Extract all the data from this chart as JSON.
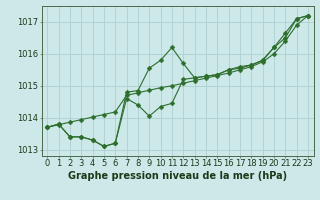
{
  "title": "Graphe pression niveau de la mer (hPa)",
  "bg_color": "#cce8e8",
  "grid_color": "#add0d0",
  "line_color": "#2d6e2d",
  "marker_color": "#2d6e2d",
  "ylim": [
    1012.8,
    1017.5
  ],
  "xlim": [
    -0.5,
    23.5
  ],
  "yticks": [
    1013,
    1014,
    1015,
    1016,
    1017
  ],
  "xticks": [
    0,
    1,
    2,
    3,
    4,
    5,
    6,
    7,
    8,
    9,
    10,
    11,
    12,
    13,
    14,
    15,
    16,
    17,
    18,
    19,
    20,
    21,
    22,
    23
  ],
  "series1_x": [
    0,
    1,
    2,
    3,
    4,
    5,
    6,
    7,
    8,
    9,
    10,
    11,
    12,
    13,
    14,
    15,
    16,
    17,
    18,
    19,
    20,
    21,
    22,
    23
  ],
  "series1_y": [
    1013.7,
    1013.8,
    1013.4,
    1013.4,
    1013.3,
    1013.1,
    1013.2,
    1014.8,
    1014.85,
    1015.55,
    1015.8,
    1016.2,
    1015.7,
    1015.25,
    1015.3,
    1015.35,
    1015.5,
    1015.6,
    1015.65,
    1015.8,
    1016.2,
    1016.65,
    1017.1,
    1017.2
  ],
  "series2_x": [
    0,
    1,
    2,
    3,
    4,
    5,
    6,
    7,
    8,
    9,
    10,
    11,
    12,
    13,
    14,
    15,
    16,
    17,
    18,
    19,
    20,
    21,
    22,
    23
  ],
  "series2_y": [
    1013.7,
    1013.8,
    1013.4,
    1013.4,
    1013.3,
    1013.1,
    1013.2,
    1014.6,
    1014.4,
    1014.05,
    1014.35,
    1014.45,
    1015.2,
    1015.25,
    1015.3,
    1015.35,
    1015.5,
    1015.55,
    1015.65,
    1015.8,
    1016.2,
    1016.5,
    1017.1,
    1017.2
  ],
  "series3_x": [
    0,
    1,
    2,
    3,
    4,
    5,
    6,
    7,
    8,
    9,
    10,
    11,
    12,
    13,
    14,
    15,
    16,
    17,
    18,
    19,
    20,
    21,
    22,
    23
  ],
  "series3_y": [
    1013.7,
    1013.78,
    1013.86,
    1013.94,
    1014.02,
    1014.1,
    1014.18,
    1014.7,
    1014.78,
    1014.86,
    1014.94,
    1015.0,
    1015.08,
    1015.16,
    1015.24,
    1015.32,
    1015.4,
    1015.5,
    1015.6,
    1015.75,
    1016.0,
    1016.4,
    1016.9,
    1017.2
  ],
  "xlabel_fontsize": 7,
  "tick_fontsize": 6,
  "title_fontweight": "bold"
}
